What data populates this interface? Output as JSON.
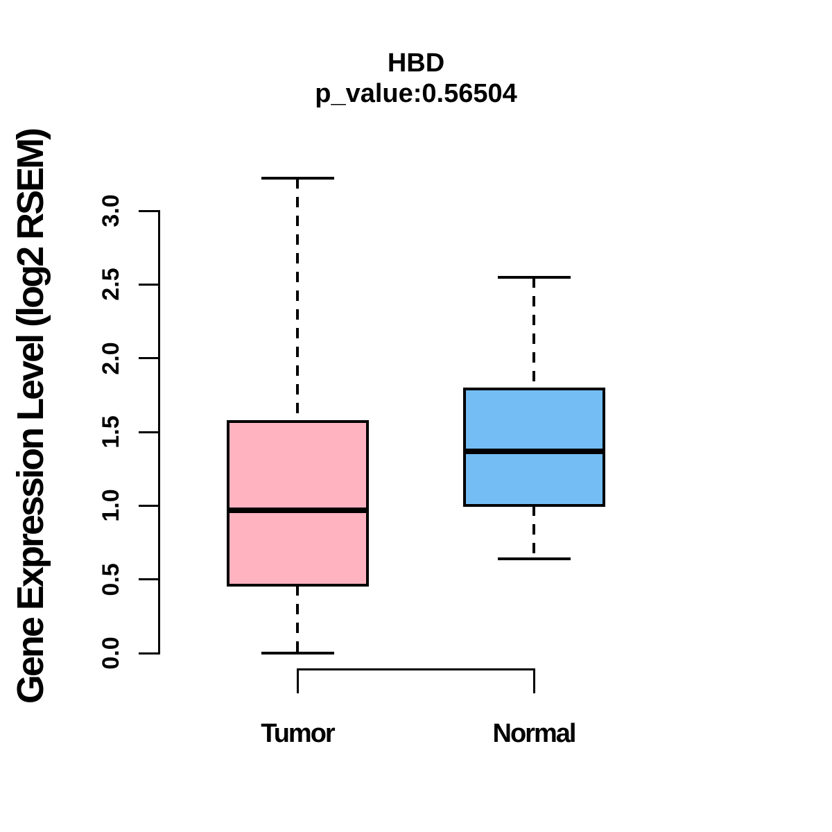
{
  "chart_data": {
    "type": "boxplot",
    "title": "HBD",
    "subtitle": "p_value:0.56504",
    "p_value": 0.56504,
    "gene": "HBD",
    "ylabel": "Gene Expression Level (log2 RSEM)",
    "xlabel": "",
    "categories": [
      "Tumor",
      "Normal"
    ],
    "series": [
      {
        "name": "Tumor",
        "color": "#FFB3C1",
        "whisker_low": 0.0,
        "q1": 0.46,
        "median": 0.97,
        "q3": 1.57,
        "whisker_high": 3.22
      },
      {
        "name": "Normal",
        "color": "#74BDF4",
        "whisker_low": 0.64,
        "q1": 1.0,
        "median": 1.37,
        "q3": 1.79,
        "whisker_high": 2.55
      }
    ],
    "ylim": [
      0.0,
      3.25
    ],
    "yticks": [
      "0.0",
      "0.5",
      "1.0",
      "1.5",
      "2.0",
      "2.5",
      "3.0"
    ],
    "ytick_side": "left",
    "grid": false,
    "legend": "none",
    "comparison_bracket": {
      "between": [
        "Tumor",
        "Normal"
      ]
    },
    "colors": {
      "axis": "#000000",
      "median": "#000000",
      "border": "#000000",
      "background": "#FFFFFF",
      "tumor_fill": "#FFB3C1",
      "normal_fill": "#74BDF4"
    }
  }
}
